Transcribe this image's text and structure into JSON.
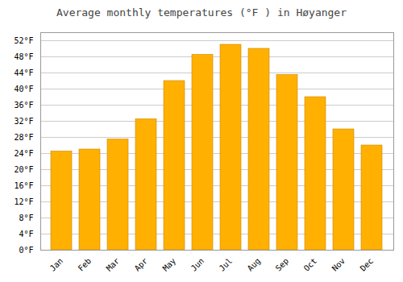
{
  "chart_data": {
    "type": "bar",
    "title": "Average monthly temperatures (°F ) in Høyanger",
    "categories": [
      "Jan",
      "Feb",
      "Mar",
      "Apr",
      "May",
      "Jun",
      "Jul",
      "Aug",
      "Sep",
      "Oct",
      "Nov",
      "Dec"
    ],
    "values": [
      24.5,
      25.0,
      27.5,
      32.5,
      42.0,
      48.5,
      51.0,
      50.0,
      43.5,
      38.0,
      30.0,
      26.0
    ],
    "color": "#FFB000",
    "ylim": [
      0,
      54
    ],
    "yticks": [
      {
        "value": 0,
        "label": "0°F"
      },
      {
        "value": 4,
        "label": "4°F"
      },
      {
        "value": 8,
        "label": "8°F"
      },
      {
        "value": 12,
        "label": "12°F"
      },
      {
        "value": 16,
        "label": "16°F"
      },
      {
        "value": 20,
        "label": "20°F"
      },
      {
        "value": 24,
        "label": "24°F"
      },
      {
        "value": 28,
        "label": "28°F"
      },
      {
        "value": 32,
        "label": "32°F"
      },
      {
        "value": 36,
        "label": "36°F"
      },
      {
        "value": 40,
        "label": "40°F"
      },
      {
        "value": 44,
        "label": "44°F"
      },
      {
        "value": 48,
        "label": "48°F"
      },
      {
        "value": 52,
        "label": "52°F"
      }
    ],
    "grid": true
  }
}
